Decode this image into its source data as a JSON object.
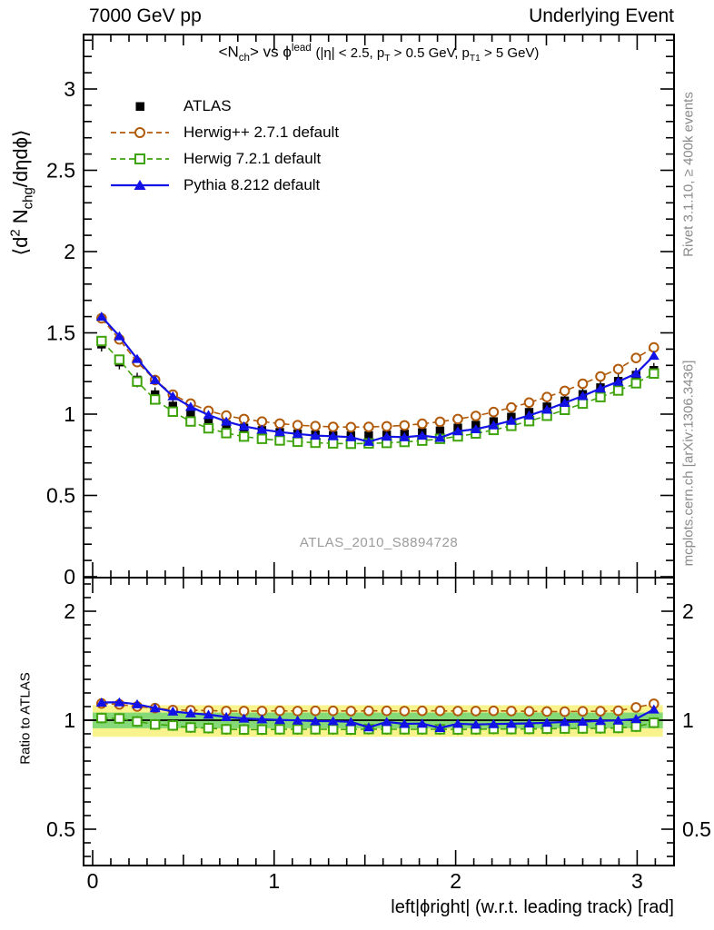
{
  "header": {
    "left": "7000 GeV pp",
    "right": "Underlying Event"
  },
  "side_notes": {
    "top_right": "Rivet 3.1.10, ≥ 400k events",
    "bottom_right": "mcplots.cern.ch [arXiv:1306.3436]"
  },
  "watermark": "ATLAS_2010_S8894728",
  "chart_data": {
    "type": "line",
    "title_html": "&lt;N<sub>ch</sub>&gt; vs ϕ<sup>lead</sup> <span class=\"paren\">(|η| &lt; 2.5, p<sub>T</sub> &gt; 0.5 GeV, p<sub>T1</sub> &gt; 5 GeV)</span>",
    "ylabel_html": "⟨d<sup>2</sup> N<sub>chg</sub>/dηdϕ⟩",
    "ratio_ylabel": "Ratio to ATLAS",
    "xlabel": "left|ϕright| (w.r.t. leading track) [rad]",
    "x_range": [
      0,
      3.14159
    ],
    "y_range_main": [
      0,
      3.34
    ],
    "y_range_ratio": [
      0.4,
      2.47
    ],
    "ratio_scale": "log",
    "x_ticks": [
      0,
      1,
      2,
      3
    ],
    "y_ticks_main": [
      0,
      0.5,
      1,
      1.5,
      2,
      2.5,
      3
    ],
    "y_ticks_ratio": [
      0.5,
      1,
      2
    ],
    "bands": {
      "yellow_range": [
        0.9,
        1.1
      ],
      "green_range": [
        0.95,
        1.05
      ],
      "yellow_color": "#f9f38e",
      "green_color": "#86d977"
    },
    "x": [
      0.049,
      0.147,
      0.245,
      0.344,
      0.442,
      0.54,
      0.638,
      0.736,
      0.834,
      0.933,
      1.031,
      1.129,
      1.227,
      1.325,
      1.423,
      1.521,
      1.62,
      1.718,
      1.816,
      1.914,
      2.012,
      2.111,
      2.209,
      2.307,
      2.405,
      2.503,
      2.601,
      2.7,
      2.798,
      2.896,
      2.994,
      3.092
    ],
    "series": [
      {
        "label": "ATLAS",
        "color": "#000000",
        "marker": "square-filled",
        "line": "none",
        "values": [
          1.43,
          1.32,
          1.21,
          1.12,
          1.05,
          1.0,
          0.96,
          0.935,
          0.915,
          0.9,
          0.888,
          0.879,
          0.873,
          0.869,
          0.868,
          0.868,
          0.872,
          0.878,
          0.887,
          0.898,
          0.915,
          0.933,
          0.955,
          0.982,
          1.012,
          1.045,
          1.082,
          1.122,
          1.163,
          1.203,
          1.24,
          1.27
        ],
        "ratio": [
          1,
          1,
          1,
          1,
          1,
          1,
          1,
          1,
          1,
          1,
          1,
          1,
          1,
          1,
          1,
          1,
          1,
          1,
          1,
          1,
          1,
          1,
          1,
          1,
          1,
          1,
          1,
          1,
          1,
          1,
          1,
          1
        ]
      },
      {
        "label": "Herwig++ 2.7.1 default",
        "color": "#b05a0a",
        "marker": "circle-open",
        "line": "dashed",
        "values": [
          1.59,
          1.46,
          1.32,
          1.21,
          1.12,
          1.065,
          1.02,
          0.991,
          0.97,
          0.954,
          0.942,
          0.932,
          0.926,
          0.922,
          0.92,
          0.921,
          0.925,
          0.931,
          0.941,
          0.953,
          0.97,
          0.989,
          1.013,
          1.041,
          1.071,
          1.105,
          1.143,
          1.187,
          1.232,
          1.277,
          1.345,
          1.41
        ],
        "ratio": [
          1.112,
          1.106,
          1.091,
          1.08,
          1.067,
          1.065,
          1.063,
          1.06,
          1.06,
          1.06,
          1.061,
          1.06,
          1.061,
          1.061,
          1.06,
          1.061,
          1.061,
          1.06,
          1.061,
          1.061,
          1.06,
          1.06,
          1.061,
          1.06,
          1.058,
          1.057,
          1.056,
          1.058,
          1.059,
          1.062,
          1.085,
          1.11
        ]
      },
      {
        "label": "Herwig 7.2.1 default",
        "color": "#3fa40c",
        "marker": "square-open",
        "line": "dashed",
        "values": [
          1.45,
          1.335,
          1.2,
          1.09,
          1.015,
          0.955,
          0.913,
          0.883,
          0.862,
          0.848,
          0.838,
          0.83,
          0.824,
          0.82,
          0.818,
          0.82,
          0.823,
          0.829,
          0.837,
          0.848,
          0.863,
          0.881,
          0.903,
          0.928,
          0.957,
          0.99,
          1.026,
          1.065,
          1.105,
          1.145,
          1.19,
          1.25
        ],
        "ratio": [
          1.014,
          1.011,
          0.992,
          0.973,
          0.967,
          0.955,
          0.951,
          0.944,
          0.942,
          0.942,
          0.944,
          0.944,
          0.944,
          0.944,
          0.942,
          0.945,
          0.944,
          0.944,
          0.944,
          0.944,
          0.943,
          0.944,
          0.946,
          0.945,
          0.946,
          0.947,
          0.948,
          0.949,
          0.95,
          0.952,
          0.96,
          0.984
        ]
      },
      {
        "label": "Pythia 8.212 default",
        "color": "#1212e6",
        "marker": "triangle-filled",
        "line": "solid",
        "values": [
          1.6,
          1.48,
          1.34,
          1.21,
          1.11,
          1.045,
          0.995,
          0.955,
          0.925,
          0.905,
          0.89,
          0.878,
          0.868,
          0.864,
          0.858,
          0.83,
          0.862,
          0.858,
          0.868,
          0.855,
          0.895,
          0.908,
          0.932,
          0.96,
          0.992,
          1.028,
          1.07,
          1.112,
          1.158,
          1.2,
          1.25,
          1.36
        ],
        "ratio": [
          1.119,
          1.121,
          1.107,
          1.08,
          1.057,
          1.045,
          1.036,
          1.021,
          1.011,
          1.006,
          1.002,
          0.999,
          0.994,
          0.994,
          0.989,
          0.956,
          0.989,
          0.977,
          0.979,
          0.952,
          0.978,
          0.973,
          0.976,
          0.978,
          0.98,
          0.984,
          0.989,
          0.991,
          0.996,
          0.998,
          1.008,
          1.071
        ]
      }
    ]
  }
}
